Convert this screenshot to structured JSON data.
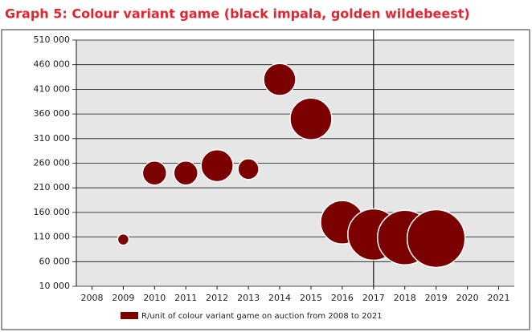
{
  "chart_data": {
    "type": "bubble",
    "title": "Graph 5: Colour variant game (black impala, golden wildebeest)",
    "x": [
      2009,
      2010,
      2011,
      2012,
      2013,
      2014,
      2015,
      2016,
      2017,
      2018,
      2019
    ],
    "series": [
      {
        "name": "R/unit of colour variant game on auction from 2008 to 2021",
        "color": "#7b0000",
        "values": [
          105000,
          240000,
          240000,
          255000,
          248000,
          430000,
          350000,
          140000,
          115000,
          109000,
          107000
        ],
        "sizes": [
          49,
          225,
          225,
          400,
          169,
          400,
          676,
          729,
          1024,
          1156,
          1296
        ]
      }
    ],
    "xlim": [
      2007.5,
      2021.5
    ],
    "xticks": [
      2008,
      2009,
      2010,
      2011,
      2012,
      2013,
      2014,
      2015,
      2016,
      2017,
      2018,
      2019,
      2020,
      2021
    ],
    "ylim": [
      10000,
      510000
    ],
    "yticks": [
      {
        "value": 10000,
        "label": "10 000"
      },
      {
        "value": 60000,
        "label": "60 000"
      },
      {
        "value": 110000,
        "label": "110 000"
      },
      {
        "value": 160000,
        "label": "160 000"
      },
      {
        "value": 210000,
        "label": "210 000"
      },
      {
        "value": 260000,
        "label": "260 000"
      },
      {
        "value": 310000,
        "label": "310 000"
      },
      {
        "value": 360000,
        "label": "360 000"
      },
      {
        "value": 410000,
        "label": "410 000"
      },
      {
        "value": 460000,
        "label": "460 000"
      },
      {
        "value": 510000,
        "label": "510 000"
      }
    ],
    "reference_x": 2017,
    "grid": true,
    "legend": "bottom"
  }
}
